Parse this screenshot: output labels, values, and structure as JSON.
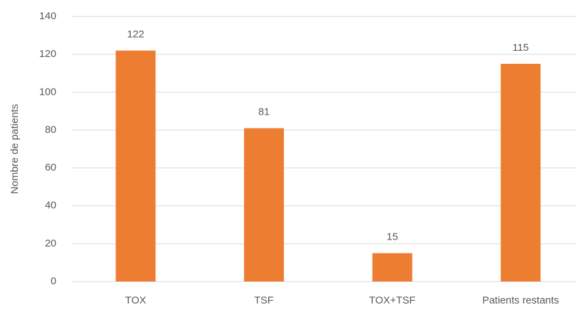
{
  "chart_data": {
    "type": "bar",
    "y_label": "Nombre de patients",
    "categories": [
      "TOX",
      "TSF",
      "TOX+TSF",
      "Patients restants"
    ],
    "values": [
      122,
      81,
      15,
      115
    ],
    "color": "#ed7d31",
    "ylim": [
      0,
      140
    ],
    "yticks": [
      0,
      20,
      40,
      60,
      80,
      100,
      120,
      140
    ],
    "grid": true,
    "data_labels": true
  }
}
